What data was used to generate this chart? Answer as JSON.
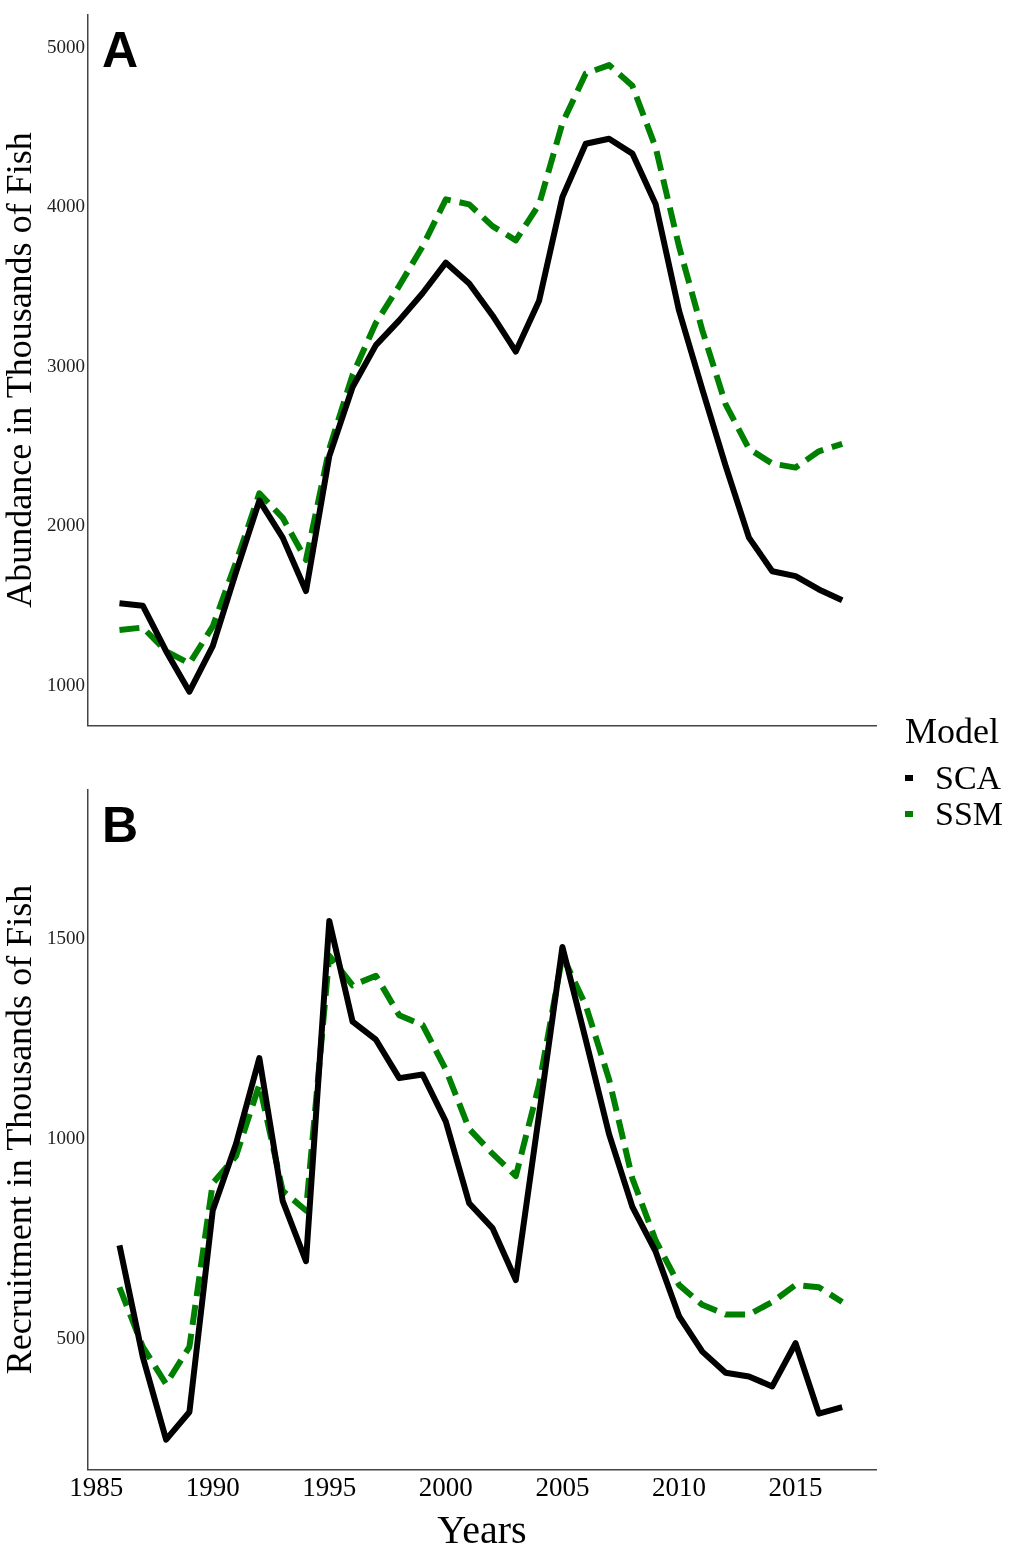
{
  "chart_data": [
    {
      "type": "line",
      "ylabel": "Abundance in Thousands of Fish",
      "annotations": [
        "A"
      ],
      "tick_labels": "y",
      "x": [
        1986,
        1987,
        1988,
        1989,
        1990,
        1991,
        1992,
        1993,
        1994,
        1995,
        1996,
        1997,
        1998,
        1999,
        2000,
        2001,
        2002,
        2003,
        2004,
        2005,
        2006,
        2007,
        2008,
        2009,
        2010,
        2011,
        2012,
        2013,
        2014,
        2015,
        2016,
        2017
      ],
      "xlim": [
        1984.65,
        2018.45
      ],
      "xticks": [
        1985,
        1990,
        1995,
        2000,
        2005,
        2010,
        2015
      ],
      "ylim": [
        750,
        5210
      ],
      "yticks": [
        1000,
        2000,
        3000,
        4000,
        5000
      ],
      "series": [
        {
          "color": "#000000",
          "line_style": "solid",
          "values": [
            1517,
            1502,
            1217,
            963,
            1248,
            1712,
            2161,
            1929,
            1594,
            2440,
            2873,
            3136,
            3291,
            3461,
            3653,
            3523,
            3322,
            3096,
            3415,
            4065,
            4399,
            4430,
            4337,
            4019,
            3353,
            2858,
            2378,
            1929,
            1718,
            1687,
            1604,
            1536
          ]
        },
        {
          "color": "#008000",
          "line_style": "dashed",
          "values": [
            1350,
            1365,
            1217,
            1139,
            1372,
            1774,
            2207,
            2053,
            1789,
            2486,
            2950,
            3276,
            3508,
            3755,
            4050,
            4019,
            3882,
            3793,
            4019,
            4529,
            4839,
            4892,
            4762,
            4375,
            3755,
            3229,
            2765,
            2486,
            2393,
            2368,
            2470,
            2517
          ]
        }
      ]
    },
    {
      "type": "line",
      "ylabel": "Recruitment in Thousands of Fish",
      "xlabel": "Years",
      "annotations": [
        "B"
      ],
      "legend": "right",
      "legend_title": "Model",
      "x": [
        1986,
        1987,
        1988,
        1989,
        1990,
        1991,
        1992,
        1993,
        1994,
        1995,
        1996,
        1997,
        1998,
        1999,
        2000,
        2001,
        2002,
        2003,
        2004,
        2005,
        2006,
        2007,
        2008,
        2009,
        2010,
        2011,
        2012,
        2013,
        2014,
        2015,
        2016,
        2017
      ],
      "xlim": [
        1984.65,
        2018.45
      ],
      "xticks": [
        1985,
        1990,
        1995,
        2000,
        2005,
        2010,
        2015
      ],
      "ylim": [
        173,
        1874
      ],
      "yticks": [
        500,
        1000,
        1500
      ],
      "series": [
        {
          "name": "SCA",
          "color": "#000000",
          "line_style": "solid",
          "values": [
            734,
            455,
            248,
            317,
            821,
            988,
            1202,
            845,
            694,
            1545,
            1293,
            1248,
            1152,
            1161,
            1043,
            839,
            777,
            647,
            1062,
            1480,
            1248,
            1012,
            830,
            718,
            557,
            468,
            415,
            406,
            381,
            489,
            313,
            329
          ]
        },
        {
          "name": "SSM",
          "color": "#008000",
          "line_style": "dashed",
          "values": [
            629,
            480,
            387,
            480,
            889,
            957,
            1136,
            870,
            821,
            1458,
            1384,
            1408,
            1309,
            1285,
            1173,
            1025,
            963,
            907,
            1136,
            1458,
            1334,
            1149,
            901,
            746,
            635,
            585,
            561,
            561,
            592,
            635,
            629,
            592
          ]
        }
      ]
    }
  ]
}
